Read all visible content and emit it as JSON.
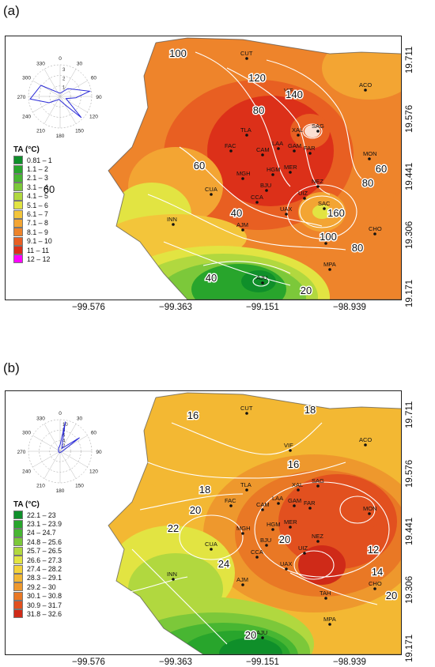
{
  "figure": {
    "panels": [
      {
        "id": "a",
        "label": "(a)",
        "legend_title": "TA (°C)",
        "legend": [
          {
            "range": "0.81 – 1",
            "color": "#0f8f2a"
          },
          {
            "range": "1.1 – 2",
            "color": "#28a52c"
          },
          {
            "range": "2.1 – 3",
            "color": "#48b632"
          },
          {
            "range": "3.1 – 4",
            "color": "#7cc83a"
          },
          {
            "range": "4.1 – 5",
            "color": "#b1d83f"
          },
          {
            "range": "5.1 – 6",
            "color": "#e2e442"
          },
          {
            "range": "6.1 – 7",
            "color": "#f3c53a"
          },
          {
            "range": "7.1 – 8",
            "color": "#f3a533"
          },
          {
            "range": "8.1 – 9",
            "color": "#ee842b"
          },
          {
            "range": "9.1 – 10",
            "color": "#e85f22"
          },
          {
            "range": "11 – 11",
            "color": "#dc3019"
          },
          {
            "range": "12 – 12",
            "color": "#ff00ff"
          }
        ],
        "rose_angles": [
          "0",
          "30",
          "60",
          "90",
          "120",
          "150",
          "180",
          "210",
          "240",
          "270",
          "300",
          "330"
        ],
        "rose_radii": [
          "1",
          "2",
          "3"
        ],
        "contour_labels": [
          "100",
          "120",
          "80",
          "140",
          "60",
          "60",
          "40",
          "80",
          "60",
          "160",
          "100",
          "80",
          "40",
          "20"
        ],
        "stations": [
          "CUT",
          "VIF",
          "ACO",
          "TLA",
          "XAL",
          "SAG",
          "FAC",
          "CAM",
          "LAA",
          "GAM",
          "FAR",
          "MON",
          "MGH",
          "HGM",
          "MER",
          "BJU",
          "NEZ",
          "CUA",
          "CCA",
          "UIZ",
          "UAX",
          "SAC",
          "INN",
          "AJM",
          "TAH",
          "CHO",
          "MPA",
          "AJU"
        ]
      },
      {
        "id": "b",
        "label": "(b)",
        "legend_title": "TA (°C)",
        "legend": [
          {
            "range": "22.1 – 23",
            "color": "#0f8f2a"
          },
          {
            "range": "23.1 – 23.9",
            "color": "#28a52c"
          },
          {
            "range": "24 – 24.7",
            "color": "#48b632"
          },
          {
            "range": "24.8 – 25.6",
            "color": "#7cc83a"
          },
          {
            "range": "25.7 – 26.5",
            "color": "#b1d83f"
          },
          {
            "range": "26.6 – 27.3",
            "color": "#e2e442"
          },
          {
            "range": "27.4 – 28.2",
            "color": "#f3d33a"
          },
          {
            "range": "28.3 – 29.1",
            "color": "#f3b833"
          },
          {
            "range": "29.2 – 30",
            "color": "#ee982d"
          },
          {
            "range": "30.1 – 30.8",
            "color": "#e97825"
          },
          {
            "range": "30.9 – 31.7",
            "color": "#e2501f"
          },
          {
            "range": "31.8 – 32.6",
            "color": "#cf2a18"
          }
        ],
        "rose_angles": [
          "0",
          "30",
          "60",
          "90",
          "120",
          "150",
          "180",
          "210",
          "240",
          "270",
          "300",
          "330"
        ],
        "rose_radii": [
          "2",
          "4",
          "6",
          "8",
          "10"
        ],
        "contour_labels": [
          "16",
          "18",
          "16",
          "18",
          "20",
          "22",
          "24",
          "20",
          "12",
          "14",
          "20",
          "20"
        ],
        "stations": [
          "CUT",
          "VIF",
          "ACO",
          "TLA",
          "XAL",
          "SAG",
          "FAC",
          "CAM",
          "LAA",
          "GAM",
          "FAR",
          "MON",
          "MGH",
          "HGM",
          "MER",
          "BJU",
          "NEZ",
          "CUA",
          "CCA",
          "UIZ",
          "UAX",
          "INN",
          "AJM",
          "TAH",
          "CHO",
          "MPA",
          "AJU"
        ]
      }
    ],
    "x_ticks": [
      "−99.576",
      "−99.363",
      "−99.151",
      "−98.939"
    ],
    "y_ticks": [
      "19.711",
      "19.576",
      "19.441",
      "19.306",
      "19.171"
    ]
  }
}
